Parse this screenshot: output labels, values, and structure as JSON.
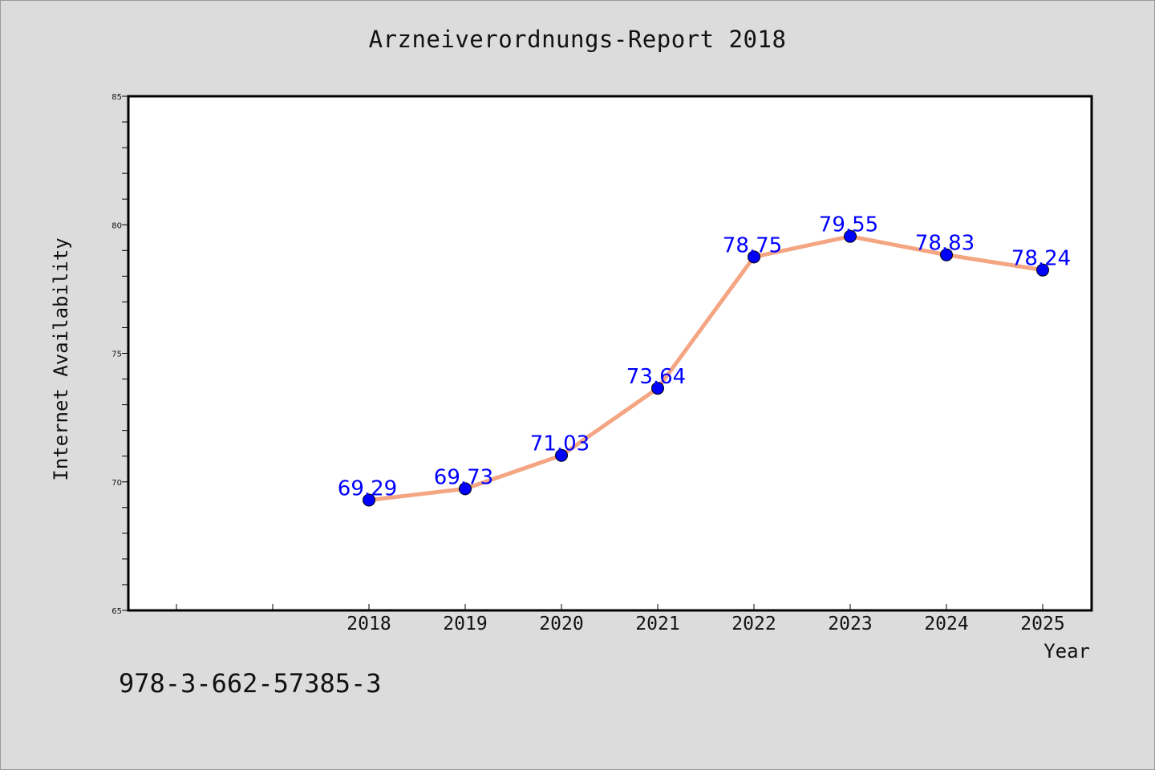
{
  "title": "Arzneiverordnungs-Report 2018",
  "footer_text": "978-3-662-57385-3",
  "colors": {
    "background": "#dcdcdc",
    "plot_background": "#ffffff",
    "line": "#f4a582",
    "marker": "#0000ff",
    "data_label": "#0000ff"
  },
  "chart_data": {
    "type": "line",
    "title": "Arzneiverordnungs-Report 2018",
    "xlabel": "Year",
    "ylabel": "Internet Availability",
    "x": [
      "2018",
      "2019",
      "2020",
      "2021",
      "2022",
      "2023",
      "2024",
      "2025"
    ],
    "x_positions_index_offset": 2,
    "x_slots": 10,
    "series": [
      {
        "values": [
          69.29,
          69.73,
          71.03,
          73.64,
          78.75,
          79.55,
          78.83,
          78.24
        ],
        "labels": [
          "69.29",
          "69.73",
          "71.03",
          "73.64",
          "78.75",
          "79.55",
          "78.83",
          "78.24"
        ]
      }
    ],
    "ylim": [
      65,
      85
    ],
    "y_major_ticks": [
      65,
      70,
      75,
      80,
      85
    ],
    "y_minor_step": 1,
    "grid": false,
    "legend": "none"
  }
}
